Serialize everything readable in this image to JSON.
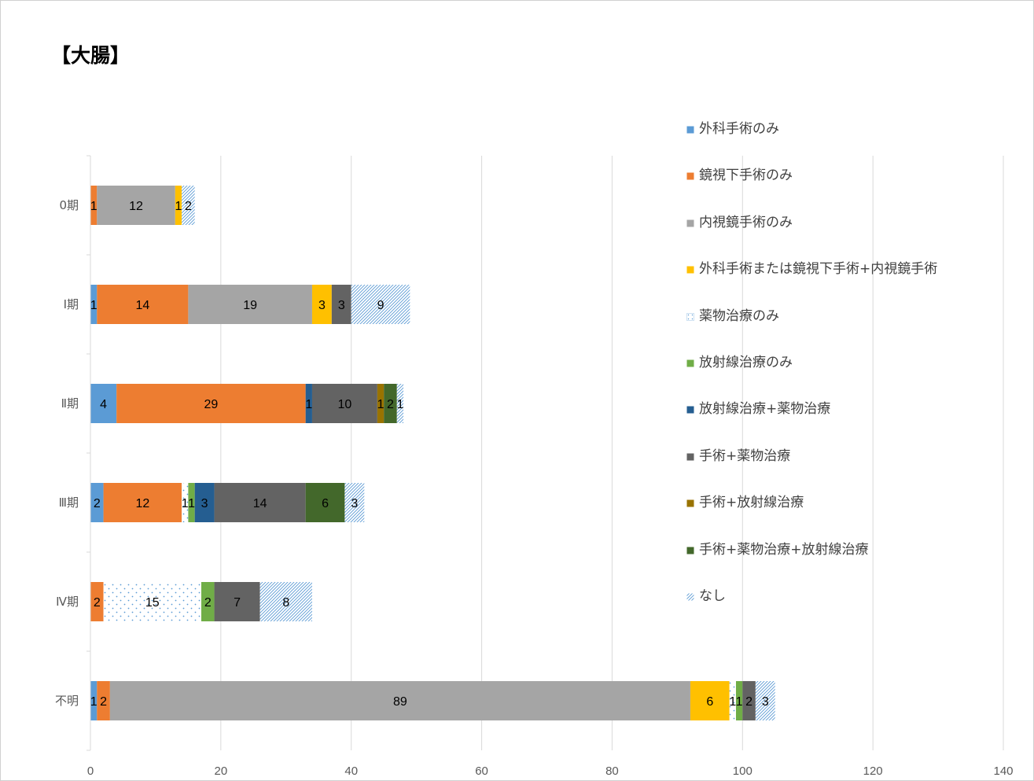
{
  "title": "【大腸】",
  "chart_data": {
    "type": "bar",
    "orientation": "horizontal",
    "stacked": true,
    "categories": [
      "0期",
      "Ⅰ期",
      "Ⅱ期",
      "Ⅲ期",
      "Ⅳ期",
      "不明"
    ],
    "xlim": [
      0,
      140
    ],
    "xticks": [
      0,
      20,
      40,
      60,
      80,
      100,
      120,
      140
    ],
    "grid": true,
    "legend_position": "right",
    "series": [
      {
        "name": "外科手術のみ",
        "color": "#5B9BD5",
        "values": [
          0,
          1,
          4,
          2,
          0,
          1
        ]
      },
      {
        "name": "鏡視下手術のみ",
        "color": "#ED7D31",
        "values": [
          1,
          14,
          29,
          12,
          2,
          2
        ]
      },
      {
        "name": "内視鏡手術のみ",
        "color": "#A5A5A5",
        "values": [
          12,
          19,
          0,
          0,
          0,
          89
        ]
      },
      {
        "name": "外科手術または鏡視下手術+内視鏡手術",
        "color": "#FFC000",
        "values": [
          1,
          3,
          0,
          0,
          0,
          6
        ]
      },
      {
        "name": "薬物治療のみ",
        "color": "#FFFFFF",
        "pattern": "dots",
        "values": [
          0,
          0,
          0,
          1,
          15,
          1
        ]
      },
      {
        "name": "放射線治療のみ",
        "color": "#70AD47",
        "values": [
          0,
          0,
          0,
          1,
          2,
          1
        ]
      },
      {
        "name": "放射線治療+薬物治療",
        "color": "#255E91",
        "values": [
          0,
          0,
          1,
          3,
          0,
          0
        ]
      },
      {
        "name": "手術+薬物治療",
        "color": "#636363",
        "values": [
          0,
          3,
          10,
          14,
          7,
          2
        ]
      },
      {
        "name": "手術+放射線治療",
        "color": "#997300",
        "values": [
          0,
          0,
          1,
          0,
          0,
          0
        ]
      },
      {
        "name": "手術+薬物治療+放射線治療",
        "color": "#43682B",
        "values": [
          0,
          0,
          2,
          6,
          0,
          0
        ]
      },
      {
        "name": "なし",
        "color": "#FFFFFF",
        "pattern": "hatch",
        "values": [
          2,
          9,
          1,
          3,
          8,
          3
        ]
      }
    ]
  }
}
